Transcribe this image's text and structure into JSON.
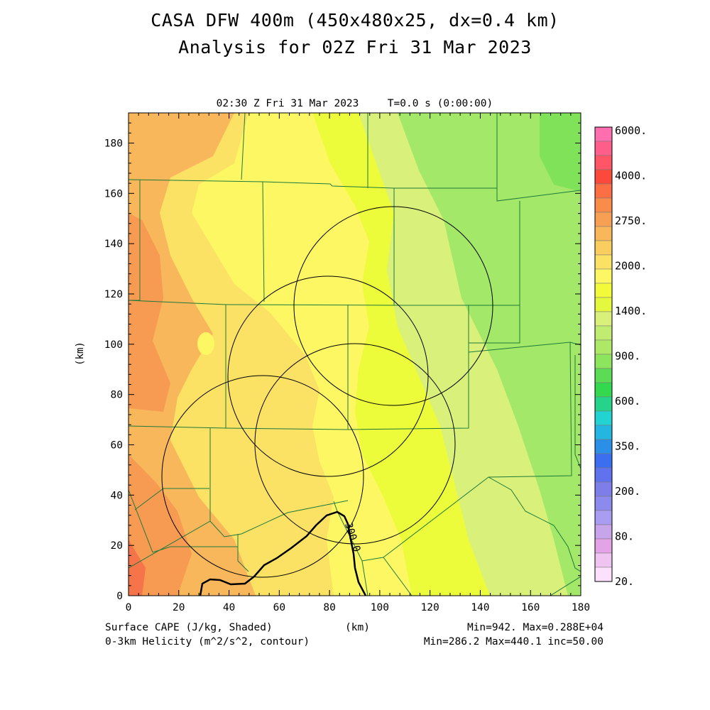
{
  "title_line1": "CASA DFW 400m (450x480x25, dx=0.4 km)",
  "title_line2": "Analysis for 02Z Fri 31 Mar 2023",
  "valid_time": "02:30 Z Fri 31 Mar 2023",
  "forecast_time": "T=0.0 s (0:00:00)",
  "x_axis": {
    "label": "(km)",
    "range": [
      0,
      180
    ],
    "ticks": [
      "0",
      "20",
      "40",
      "60",
      "80",
      "100",
      "120",
      "140",
      "160",
      "180"
    ]
  },
  "y_axis": {
    "label": "(km)",
    "range": [
      0,
      192
    ],
    "ticks": [
      "0",
      "20",
      "40",
      "60",
      "80",
      "100",
      "120",
      "140",
      "160",
      "180"
    ]
  },
  "colorbar": {
    "labels": [
      "6000.",
      "4000.",
      "2750.",
      "2000.",
      "1400.",
      "900.",
      "600.",
      "350.",
      "200.",
      "80.",
      "20."
    ],
    "colors": [
      "#ff6fb0",
      "#ff5f8a",
      "#ff5566",
      "#fb4a3c",
      "#fc6f45",
      "#f98b4b",
      "#f7a054",
      "#f8b75a",
      "#f9ce5f",
      "#fbe164",
      "#fdf764",
      "#f2fb3a",
      "#e4f93e",
      "#d9f07a",
      "#c0ec72",
      "#ade966",
      "#8de45d",
      "#5cdc55",
      "#33d84f",
      "#25d48a",
      "#23d3d1",
      "#22b6e0",
      "#2b8fe7",
      "#3b6ff0",
      "#6172ee",
      "#7d7ee8",
      "#8c8aec",
      "#a89df0",
      "#c8a4eb",
      "#e3a3e6",
      "#efc4f0",
      "#fde0fb"
    ]
  },
  "contour_label": "300.0",
  "footer": {
    "left1": "Surface CAPE (J/kg, Shaded)",
    "left2": "0-3km Helicity (m^2/s^2, contour)",
    "center": "(km)",
    "right1": "Min=942. Max=0.288E+04",
    "right2": "Min=286.2 Max=440.1 inc=50.00"
  }
}
